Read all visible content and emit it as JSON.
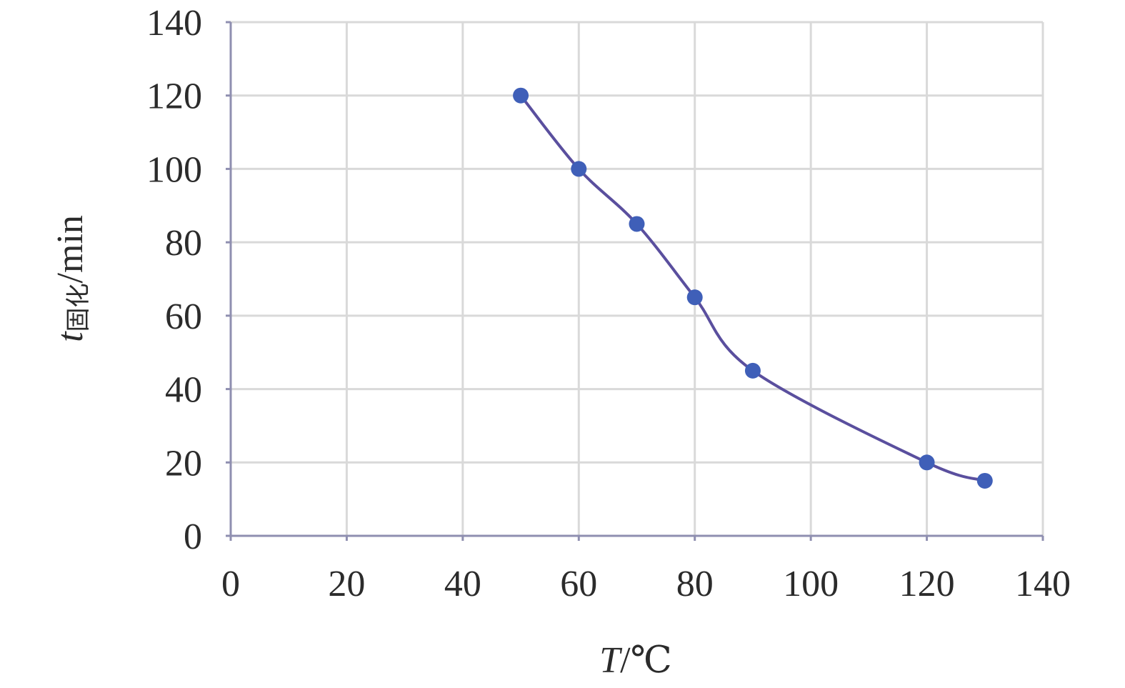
{
  "chart_data": {
    "type": "line",
    "smooth": true,
    "xlabel_var": "T",
    "xlabel_unit": "/℃",
    "ylabel_var": "t",
    "ylabel_sub": "固化",
    "ylabel_unit": "/min",
    "xlim": [
      0,
      140
    ],
    "ylim": [
      0,
      140
    ],
    "xticks": [
      0,
      20,
      40,
      60,
      80,
      100,
      120,
      140
    ],
    "yticks": [
      0,
      20,
      40,
      60,
      80,
      100,
      120,
      140
    ],
    "grid": true,
    "series": [
      {
        "x": [
          50,
          60,
          70,
          80,
          90,
          120,
          130
        ],
        "y": [
          120,
          100,
          85,
          65,
          45,
          20,
          15
        ]
      }
    ],
    "colors": {
      "line": "#5a4f9e",
      "marker": "#3f5fb8",
      "grid": "#d9d9d9",
      "axis": "#8f8fb0"
    }
  }
}
